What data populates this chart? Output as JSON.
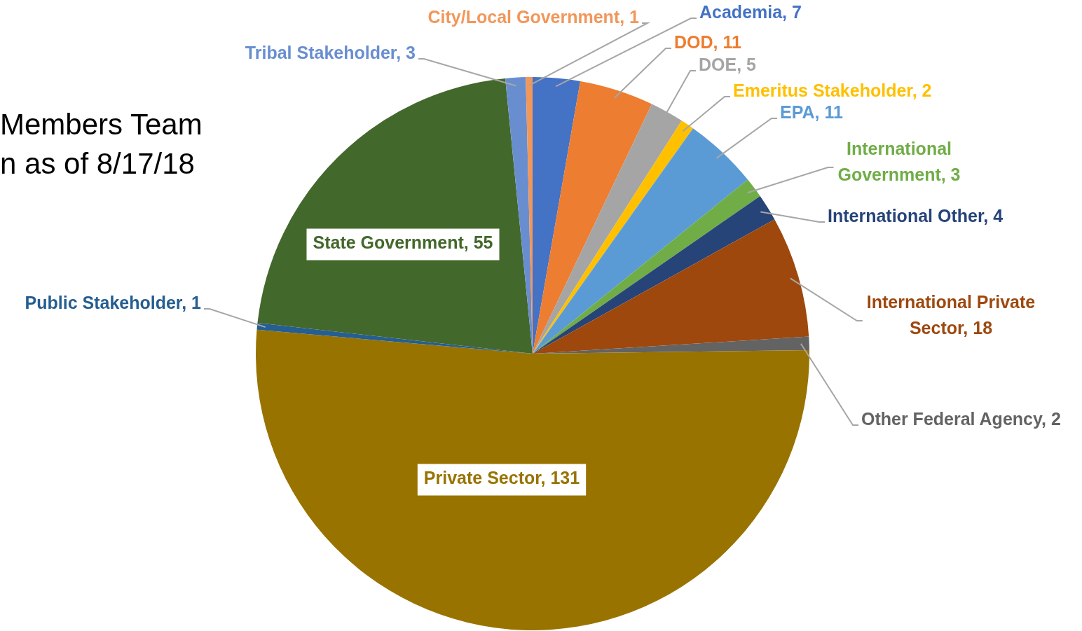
{
  "chart_data": {
    "type": "pie",
    "title": "Members Team",
    "subtitle": "n as of 8/17/18",
    "categories": [
      "Academia, 7",
      "DOD, 11",
      "DOE, 5",
      "Emeritus Stakeholder, 2",
      "EPA, 11",
      "International Government, 3",
      "International Other, 4",
      "International Private Sector, 18",
      "Other Federal Agency, 2",
      "Private Sector, 131",
      "Public Stakeholder, 1",
      "State Government, 55",
      "Tribal Stakeholder, 3",
      "City/Local Government, 1"
    ],
    "values": [
      7,
      11,
      5,
      2,
      11,
      3,
      4,
      18,
      2,
      131,
      1,
      55,
      3,
      1
    ],
    "colors": [
      "#4472c4",
      "#ed7d31",
      "#a5a5a5",
      "#ffc000",
      "#5b9bd5",
      "#70ad47",
      "#264478",
      "#9e480e",
      "#636363",
      "#997300",
      "#255e91",
      "#43682b",
      "#698ed0",
      "#f1975a"
    ],
    "legend": false
  }
}
